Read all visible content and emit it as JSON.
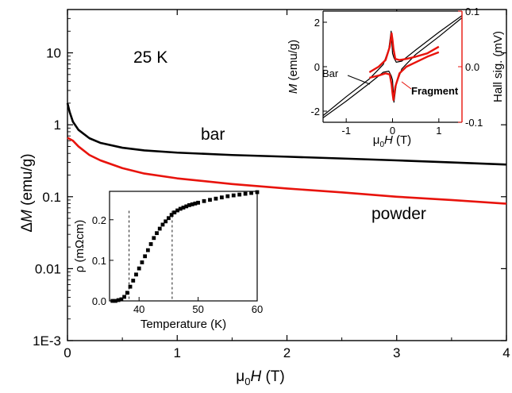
{
  "chart_data": [
    {
      "type": "line",
      "id": "main",
      "xlabel_prefix": "μ",
      "xlabel_sub": "0",
      "xlabel_var": "H",
      "xlabel_unit": " (T)",
      "ylabel_prefix": "Δ",
      "ylabel_var": "M",
      "ylabel_unit": " (emu/g)",
      "yscale": "log",
      "xlim": [
        0,
        4
      ],
      "ylim": [
        0.001,
        40
      ],
      "xticks": [
        0,
        1,
        2,
        3,
        4
      ],
      "xtick_labels": [
        "0",
        "1",
        "2",
        "3",
        "4"
      ],
      "yticks": [
        0.001,
        0.01,
        0.1,
        1,
        10
      ],
      "ytick_labels": [
        "1E-3",
        "0.01",
        "0.1",
        "1",
        "10"
      ],
      "annotation": "25 K",
      "series": [
        {
          "name": "bar",
          "color": "#000000",
          "x": [
            0.0,
            0.02,
            0.05,
            0.1,
            0.2,
            0.3,
            0.5,
            0.7,
            1.0,
            1.5,
            2.0,
            2.5,
            3.0,
            3.5,
            4.0
          ],
          "y": [
            2.0,
            1.5,
            1.1,
            0.85,
            0.65,
            0.56,
            0.48,
            0.44,
            0.41,
            0.38,
            0.36,
            0.34,
            0.32,
            0.3,
            0.28
          ]
        },
        {
          "name": "powder",
          "color": "#e8130c",
          "x": [
            0.0,
            0.05,
            0.1,
            0.2,
            0.3,
            0.5,
            0.7,
            1.0,
            1.5,
            2.0,
            2.5,
            3.0,
            3.5,
            4.0
          ],
          "y": [
            0.66,
            0.6,
            0.5,
            0.38,
            0.32,
            0.25,
            0.21,
            0.18,
            0.15,
            0.13,
            0.115,
            0.1,
            0.09,
            0.08
          ]
        }
      ]
    },
    {
      "type": "line",
      "id": "inset_hysteresis",
      "xlabel_prefix": "μ",
      "xlabel_sub": "0",
      "xlabel_var": "H",
      "xlabel_unit": " (T)",
      "ylabel_var": "M",
      "ylabel_unit": " (emu/g)",
      "y2label": "Hall sig. (mV)",
      "xlim": [
        -1.5,
        1.5
      ],
      "ylim": [
        -2.5,
        2.5
      ],
      "y2lim": [
        -0.1,
        0.1
      ],
      "xticks": [
        -1,
        0,
        1
      ],
      "xtick_labels": [
        "-1",
        "0",
        "1"
      ],
      "yticks": [
        -2,
        0,
        2
      ],
      "ytick_labels": [
        "-2",
        "0",
        "2"
      ],
      "y2ticks": [
        -0.1,
        0.0,
        0.1
      ],
      "y2tick_labels": [
        "-0.1",
        "0.0",
        "0.1"
      ],
      "series": [
        {
          "name": "Bar",
          "color": "#000000",
          "branch_up": {
            "x": [
              -1.5,
              -1.0,
              -0.5,
              -0.2,
              -0.08,
              -0.03,
              0.0,
              0.03,
              0.08,
              0.2,
              0.5,
              1.0,
              1.5
            ],
            "y": [
              -2.3,
              -1.55,
              -0.75,
              -0.25,
              -0.2,
              -0.4,
              -0.6,
              -1.6,
              -0.8,
              -0.1,
              0.55,
              1.35,
              2.2
            ]
          },
          "branch_down": {
            "x": [
              1.5,
              1.0,
              0.5,
              0.2,
              0.08,
              0.03,
              0.0,
              -0.03,
              -0.08,
              -0.2,
              -0.5,
              -1.0,
              -1.5
            ],
            "y": [
              2.3,
              1.55,
              0.75,
              0.25,
              0.2,
              0.4,
              0.6,
              1.6,
              0.8,
              0.1,
              -0.55,
              -1.35,
              -2.2
            ]
          }
        },
        {
          "name": "Fragment",
          "color": "#e8130c",
          "branch_up": {
            "x": [
              -0.5,
              -0.3,
              -0.15,
              -0.06,
              -0.02,
              0.0,
              0.02,
              0.06,
              0.15,
              0.3,
              0.5,
              0.75,
              1.0
            ],
            "y": [
              -0.5,
              -0.4,
              -0.3,
              -0.35,
              -0.8,
              -1.2,
              -1.5,
              -0.9,
              -0.3,
              0.0,
              0.2,
              0.45,
              0.65
            ]
          },
          "branch_down": {
            "x": [
              1.0,
              0.75,
              0.5,
              0.3,
              0.15,
              0.06,
              0.02,
              0.0,
              -0.02,
              -0.06,
              -0.15,
              -0.3,
              -0.5
            ],
            "y": [
              0.9,
              0.6,
              0.45,
              0.35,
              0.3,
              0.35,
              0.8,
              1.2,
              1.5,
              0.9,
              0.3,
              0.0,
              -0.25
            ]
          }
        }
      ]
    },
    {
      "type": "scatter",
      "id": "inset_resistivity",
      "xlabel": "Temperature (K)",
      "ylabel_var": "ρ",
      "ylabel_unit": " (mΩcm)",
      "xlim": [
        35,
        60
      ],
      "ylim": [
        0,
        0.27
      ],
      "xticks": [
        40,
        50,
        60
      ],
      "xtick_labels": [
        "40",
        "50",
        "60"
      ],
      "yticks": [
        0.0,
        0.1,
        0.2
      ],
      "ytick_labels": [
        "0.0",
        "0.1",
        "0.2"
      ],
      "vlines": [
        38.3,
        45.6
      ],
      "series": [
        {
          "name": "",
          "color": "#000000",
          "x": [
            35.5,
            36,
            36.5,
            37,
            37.5,
            38,
            38.5,
            39,
            39.5,
            40,
            40.5,
            41,
            41.5,
            42,
            42.5,
            43,
            43.5,
            44,
            44.5,
            45,
            45.5,
            46,
            46.5,
            47,
            47.5,
            48,
            48.5,
            49,
            49.5,
            50,
            51,
            52,
            53,
            54,
            55,
            56,
            57,
            58,
            59,
            60
          ],
          "y": [
            0.0,
            0.0,
            0.002,
            0.004,
            0.01,
            0.02,
            0.035,
            0.05,
            0.065,
            0.08,
            0.095,
            0.11,
            0.125,
            0.14,
            0.155,
            0.167,
            0.178,
            0.188,
            0.196,
            0.204,
            0.212,
            0.218,
            0.223,
            0.227,
            0.23,
            0.233,
            0.236,
            0.238,
            0.24,
            0.242,
            0.246,
            0.249,
            0.252,
            0.255,
            0.258,
            0.26,
            0.262,
            0.264,
            0.266,
            0.268
          ]
        }
      ]
    }
  ]
}
